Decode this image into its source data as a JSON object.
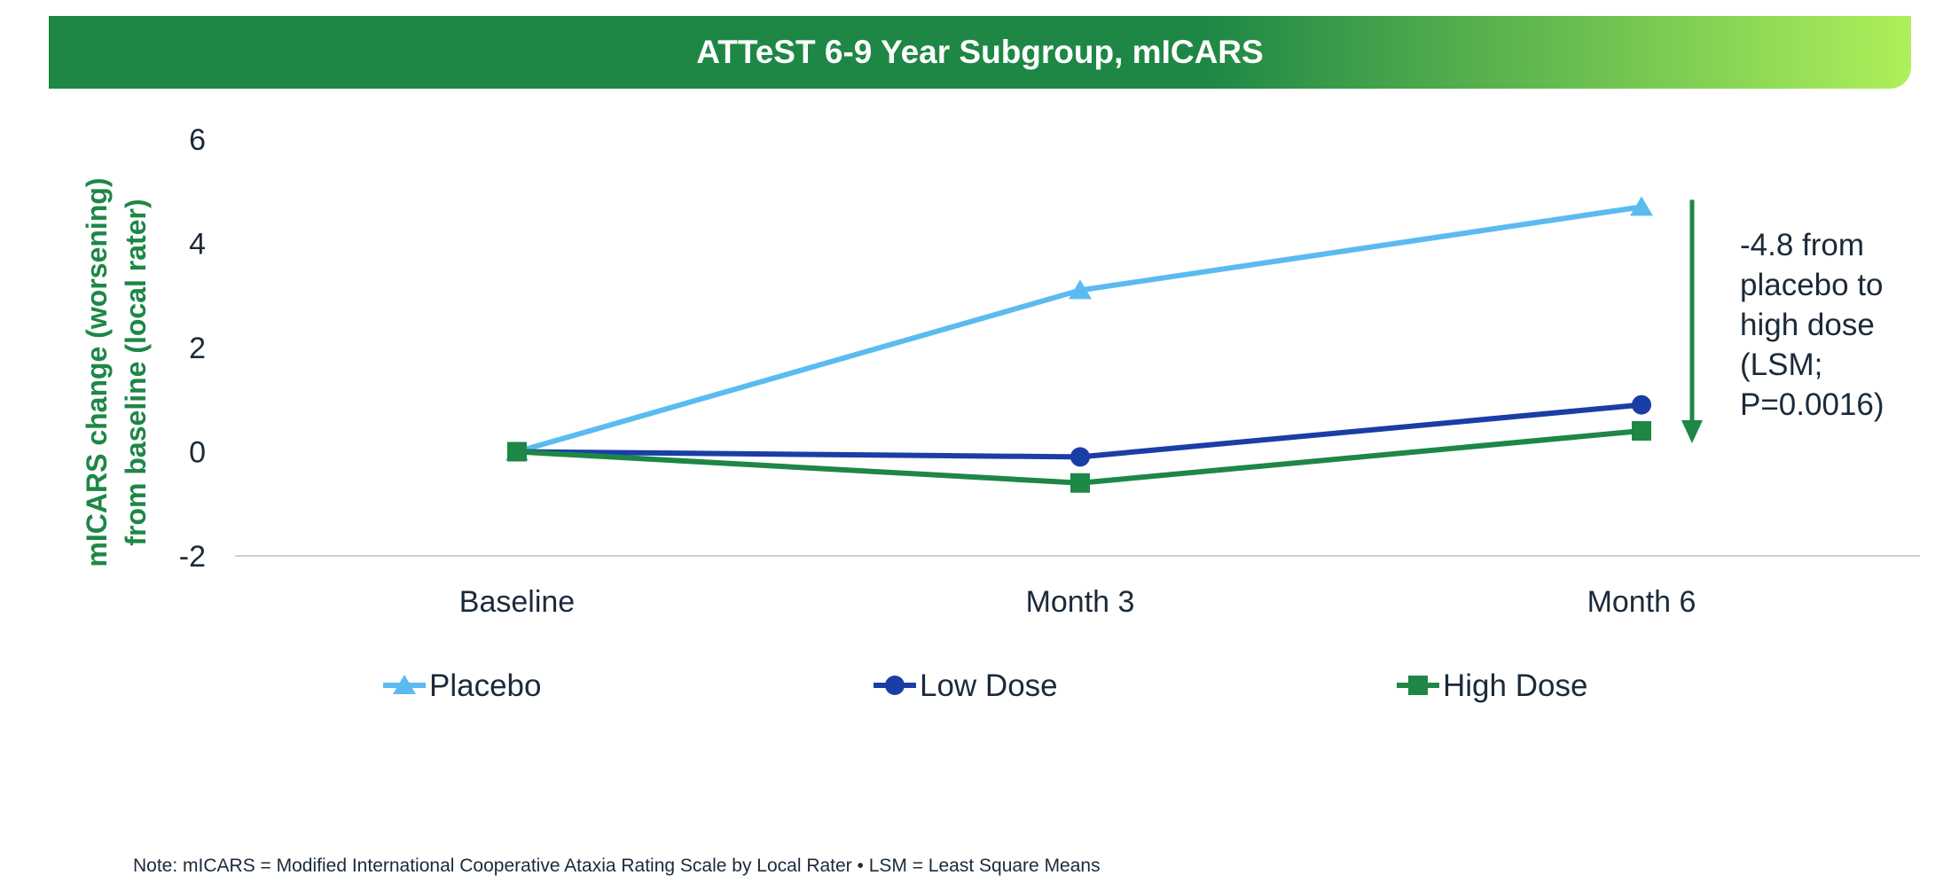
{
  "banner": {
    "title": "ATTeST 6-9 Year Subgroup, mICARS"
  },
  "colors": {
    "banner_dark": "#1e8746",
    "banner_light": "#aef05a",
    "placebo": "#5bbbf0",
    "low": "#1a3ea6",
    "high": "#1e8746",
    "axis_text": "#1b2a3a",
    "ylabel": "#1e8746"
  },
  "chart_data": {
    "type": "line",
    "title": "ATTeST 6-9 Year Subgroup, mICARS",
    "categories": [
      "Baseline",
      "Month 3",
      "Month 6"
    ],
    "ylabel": "mICARS change (worsening) from baseline (local rater)",
    "ylabel_lines": [
      "mICARS change (worsening)",
      "from baseline (local rater)"
    ],
    "ylim": [
      -2,
      6
    ],
    "yticks": [
      "6",
      "4",
      "2",
      "0",
      "-2"
    ],
    "series": [
      {
        "name": "Placebo",
        "marker": "triangle",
        "values": [
          0,
          3.1,
          4.7
        ]
      },
      {
        "name": "Low Dose",
        "marker": "circle",
        "values": [
          0,
          -0.1,
          0.9
        ]
      },
      {
        "name": "High Dose",
        "marker": "square",
        "values": [
          0,
          -0.6,
          0.4
        ]
      }
    ],
    "annotation": {
      "lines": [
        "-4.8 from",
        "placebo to",
        "high dose",
        "(LSM;",
        "P=0.0016)"
      ],
      "from_value": 4.7,
      "to_value": 0.4
    },
    "legend": "bottom",
    "grid": false
  },
  "note": "Note: mICARS = Modified International Cooperative Ataxia Rating Scale by Local Rater • LSM = Least Square Means"
}
